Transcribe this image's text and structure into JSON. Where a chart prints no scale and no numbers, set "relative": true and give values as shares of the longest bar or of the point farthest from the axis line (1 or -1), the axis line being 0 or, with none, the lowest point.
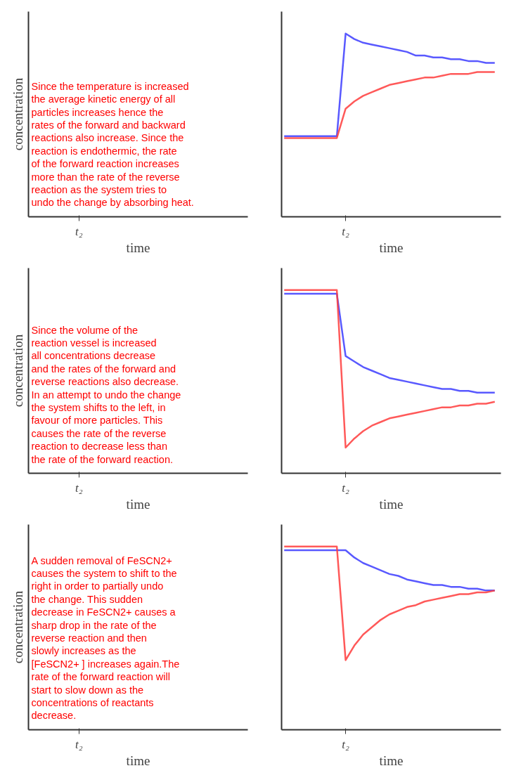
{
  "chart_data": [
    {
      "type": "other",
      "ylabel": "concentration",
      "xlabel": "time",
      "annotations": [
        "Since the temperature is increased\nthe average kinetic energy of all\nparticles increases hence the\nrates of the forward and backward\nreactions also increase. Since the\nreaction is endothermic, the rate\nof the forward reaction increases\nmore than the rate of the reverse\nreaction as the system tries to\nundo the change by absorbing heat.",
        "t₂"
      ]
    },
    {
      "type": "line",
      "relative": true,
      "xlabel": "time",
      "tick_labels": "x",
      "annotations": [
        "t₂"
      ],
      "categories": [
        null,
        null,
        null,
        null,
        null,
        null,
        null,
        null,
        null,
        null,
        null,
        null,
        null,
        null,
        null,
        null,
        null,
        null,
        null,
        null,
        null,
        null,
        null,
        null,
        null
      ],
      "series": [
        {
          "color": "#3c3cff",
          "values": [
            0.44,
            0.44,
            0.44,
            0.44,
            0.44,
            0.44,
            0.44,
            1.0,
            0.97,
            0.95,
            0.94,
            0.93,
            0.92,
            0.91,
            0.9,
            0.88,
            0.88,
            0.87,
            0.87,
            0.86,
            0.86,
            0.85,
            0.85,
            0.84,
            0.84
          ]
        },
        {
          "color": "#ff3c3c",
          "values": [
            0.43,
            0.43,
            0.43,
            0.43,
            0.43,
            0.43,
            0.43,
            0.59,
            0.63,
            0.66,
            0.68,
            0.7,
            0.72,
            0.73,
            0.74,
            0.75,
            0.76,
            0.76,
            0.77,
            0.78,
            0.78,
            0.78,
            0.79,
            0.79,
            0.79
          ]
        }
      ]
    },
    {
      "type": "other",
      "ylabel": "concentration",
      "xlabel": "time",
      "annotations": [
        "Since the volume of the\nreaction vessel is increased\nall concentrations decrease\nand the rates of the forward and\nreverse reactions also decrease.\nIn an attempt to undo the change\nthe system shifts to the left, in\nfavour of more particles.  This\ncauses the rate of the reverse\nreaction to decrease less than\nthe rate of the forward reaction.",
        "t₂"
      ]
    },
    {
      "type": "line",
      "relative": true,
      "xlabel": "time",
      "tick_labels": "x",
      "annotations": [
        "t₂"
      ],
      "categories": [
        null,
        null,
        null,
        null,
        null,
        null,
        null,
        null,
        null,
        null,
        null,
        null,
        null,
        null,
        null,
        null,
        null,
        null,
        null,
        null,
        null,
        null,
        null,
        null,
        null
      ],
      "series": [
        {
          "color": "#3c3cff",
          "values": [
            0.98,
            0.98,
            0.98,
            0.98,
            0.98,
            0.98,
            0.98,
            0.64,
            0.61,
            0.58,
            0.56,
            0.54,
            0.52,
            0.51,
            0.5,
            0.49,
            0.48,
            0.47,
            0.46,
            0.46,
            0.45,
            0.45,
            0.44,
            0.44,
            0.44
          ]
        },
        {
          "color": "#ff3c3c",
          "values": [
            1.0,
            1.0,
            1.0,
            1.0,
            1.0,
            1.0,
            1.0,
            0.14,
            0.19,
            0.23,
            0.26,
            0.28,
            0.3,
            0.31,
            0.32,
            0.33,
            0.34,
            0.35,
            0.36,
            0.36,
            0.37,
            0.37,
            0.38,
            0.38,
            0.39
          ]
        }
      ]
    },
    {
      "type": "other",
      "ylabel": "concentration",
      "xlabel": "time",
      "annotations": [
        "A sudden removal of FeSCN2+\ncauses the system to shift to the\nright in order to partially undo\nthe change.  This sudden\ndecrease in FeSCN2+  causes a\nsharp drop in the rate of the\nreverse reaction and then\nslowly increases as the\n[FeSCN2+ ] increases again.The\nrate of the forward reaction will\nstart to slow down as the\nconcentrations of reactants\ndecrease.",
        "t₂"
      ]
    },
    {
      "type": "line",
      "relative": true,
      "xlabel": "time",
      "tick_labels": "x",
      "annotations": [
        "t₂"
      ],
      "categories": [
        null,
        null,
        null,
        null,
        null,
        null,
        null,
        null,
        null,
        null,
        null,
        null,
        null,
        null,
        null,
        null,
        null,
        null,
        null,
        null,
        null,
        null,
        null,
        null,
        null
      ],
      "series": [
        {
          "color": "#3c3cff",
          "values": [
            0.98,
            0.98,
            0.98,
            0.98,
            0.98,
            0.98,
            0.98,
            0.98,
            0.94,
            0.91,
            0.89,
            0.87,
            0.85,
            0.84,
            0.82,
            0.81,
            0.8,
            0.79,
            0.79,
            0.78,
            0.78,
            0.77,
            0.77,
            0.76,
            0.76
          ]
        },
        {
          "color": "#ff3c3c",
          "values": [
            1.0,
            1.0,
            1.0,
            1.0,
            1.0,
            1.0,
            1.0,
            0.38,
            0.46,
            0.52,
            0.56,
            0.6,
            0.63,
            0.65,
            0.67,
            0.68,
            0.7,
            0.71,
            0.72,
            0.73,
            0.74,
            0.74,
            0.75,
            0.75,
            0.76
          ]
        }
      ]
    }
  ]
}
